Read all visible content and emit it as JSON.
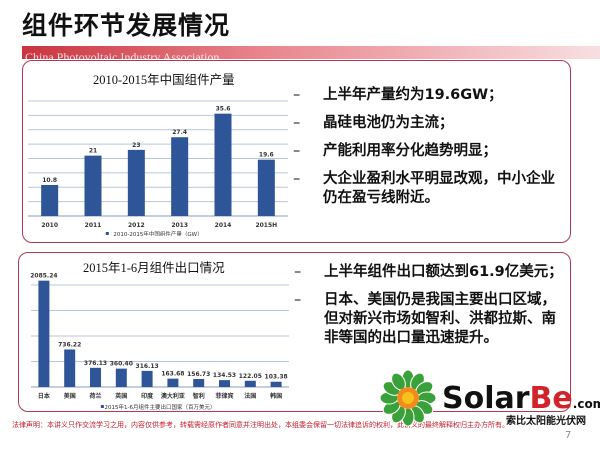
{
  "page_title": "组件环节发展情况",
  "band_text": "China Photovoltaic Industry Association",
  "chart_data": [
    {
      "type": "bar",
      "title": "2010-2015年中国组件产量",
      "categories": [
        "2010",
        "2011",
        "2012",
        "2013",
        "2014",
        "2015H"
      ],
      "values": [
        10.8,
        21,
        23,
        27.4,
        35.6,
        19.6
      ],
      "legend": "2010-2015年中国组件产量（GW）",
      "ylim": [
        0,
        40
      ],
      "grid_step": 5,
      "grid": true,
      "legend_position": "bottom",
      "color": "#2e5597"
    },
    {
      "type": "bar",
      "title": "2015年1-6月组件出口情况",
      "categories": [
        "日本",
        "美国",
        "荷兰",
        "英国",
        "印度",
        "澳大利亚",
        "智利",
        "菲律宾",
        "法国",
        "韩国"
      ],
      "values": [
        2085.24,
        736.22,
        376.13,
        360.4,
        316.13,
        163.68,
        156.73,
        134.53,
        122.05,
        103.38
      ],
      "labels": [
        "2085.24",
        "736.22",
        "376.13",
        "360.40",
        "316.13",
        "163.68",
        "156.73",
        "134.53",
        "122.05",
        "103.38"
      ],
      "legend": "2015年1-6月组件主要出口国家（百万美元）",
      "ylim": [
        0,
        2000
      ],
      "grid_step": 500,
      "grid": true,
      "legend_position": "bottom",
      "color": "#2e5597"
    }
  ],
  "bullets_top": [
    "上半年产量约为19.6GW；",
    "晶硅电池仍为主流；",
    "产能利用率分化趋势明显；",
    "大企业盈利水平明显改观，中小企业仍在盈亏线附近。"
  ],
  "bullets_bottom": [
    "上半年组件出口额达到61.9亿美元；",
    "日本、美国仍是我国主要出口区域，但对新兴市场如智利、洪都拉斯、南非等国的出口量迅速提升。"
  ],
  "bullet_marker": "–",
  "legal": "法律声明：本讲义只作交流学习之用，内容仅供参考，转载需经原作者同意并注明出处，本组委会保留一切法律追诉的权利，此讲义的最终解释权归主办方所有。",
  "page_number": "7",
  "watermark": {
    "brand": "SolarBe",
    "suffix": ".com",
    "subtitle": "索比太阳能光伏网"
  }
}
